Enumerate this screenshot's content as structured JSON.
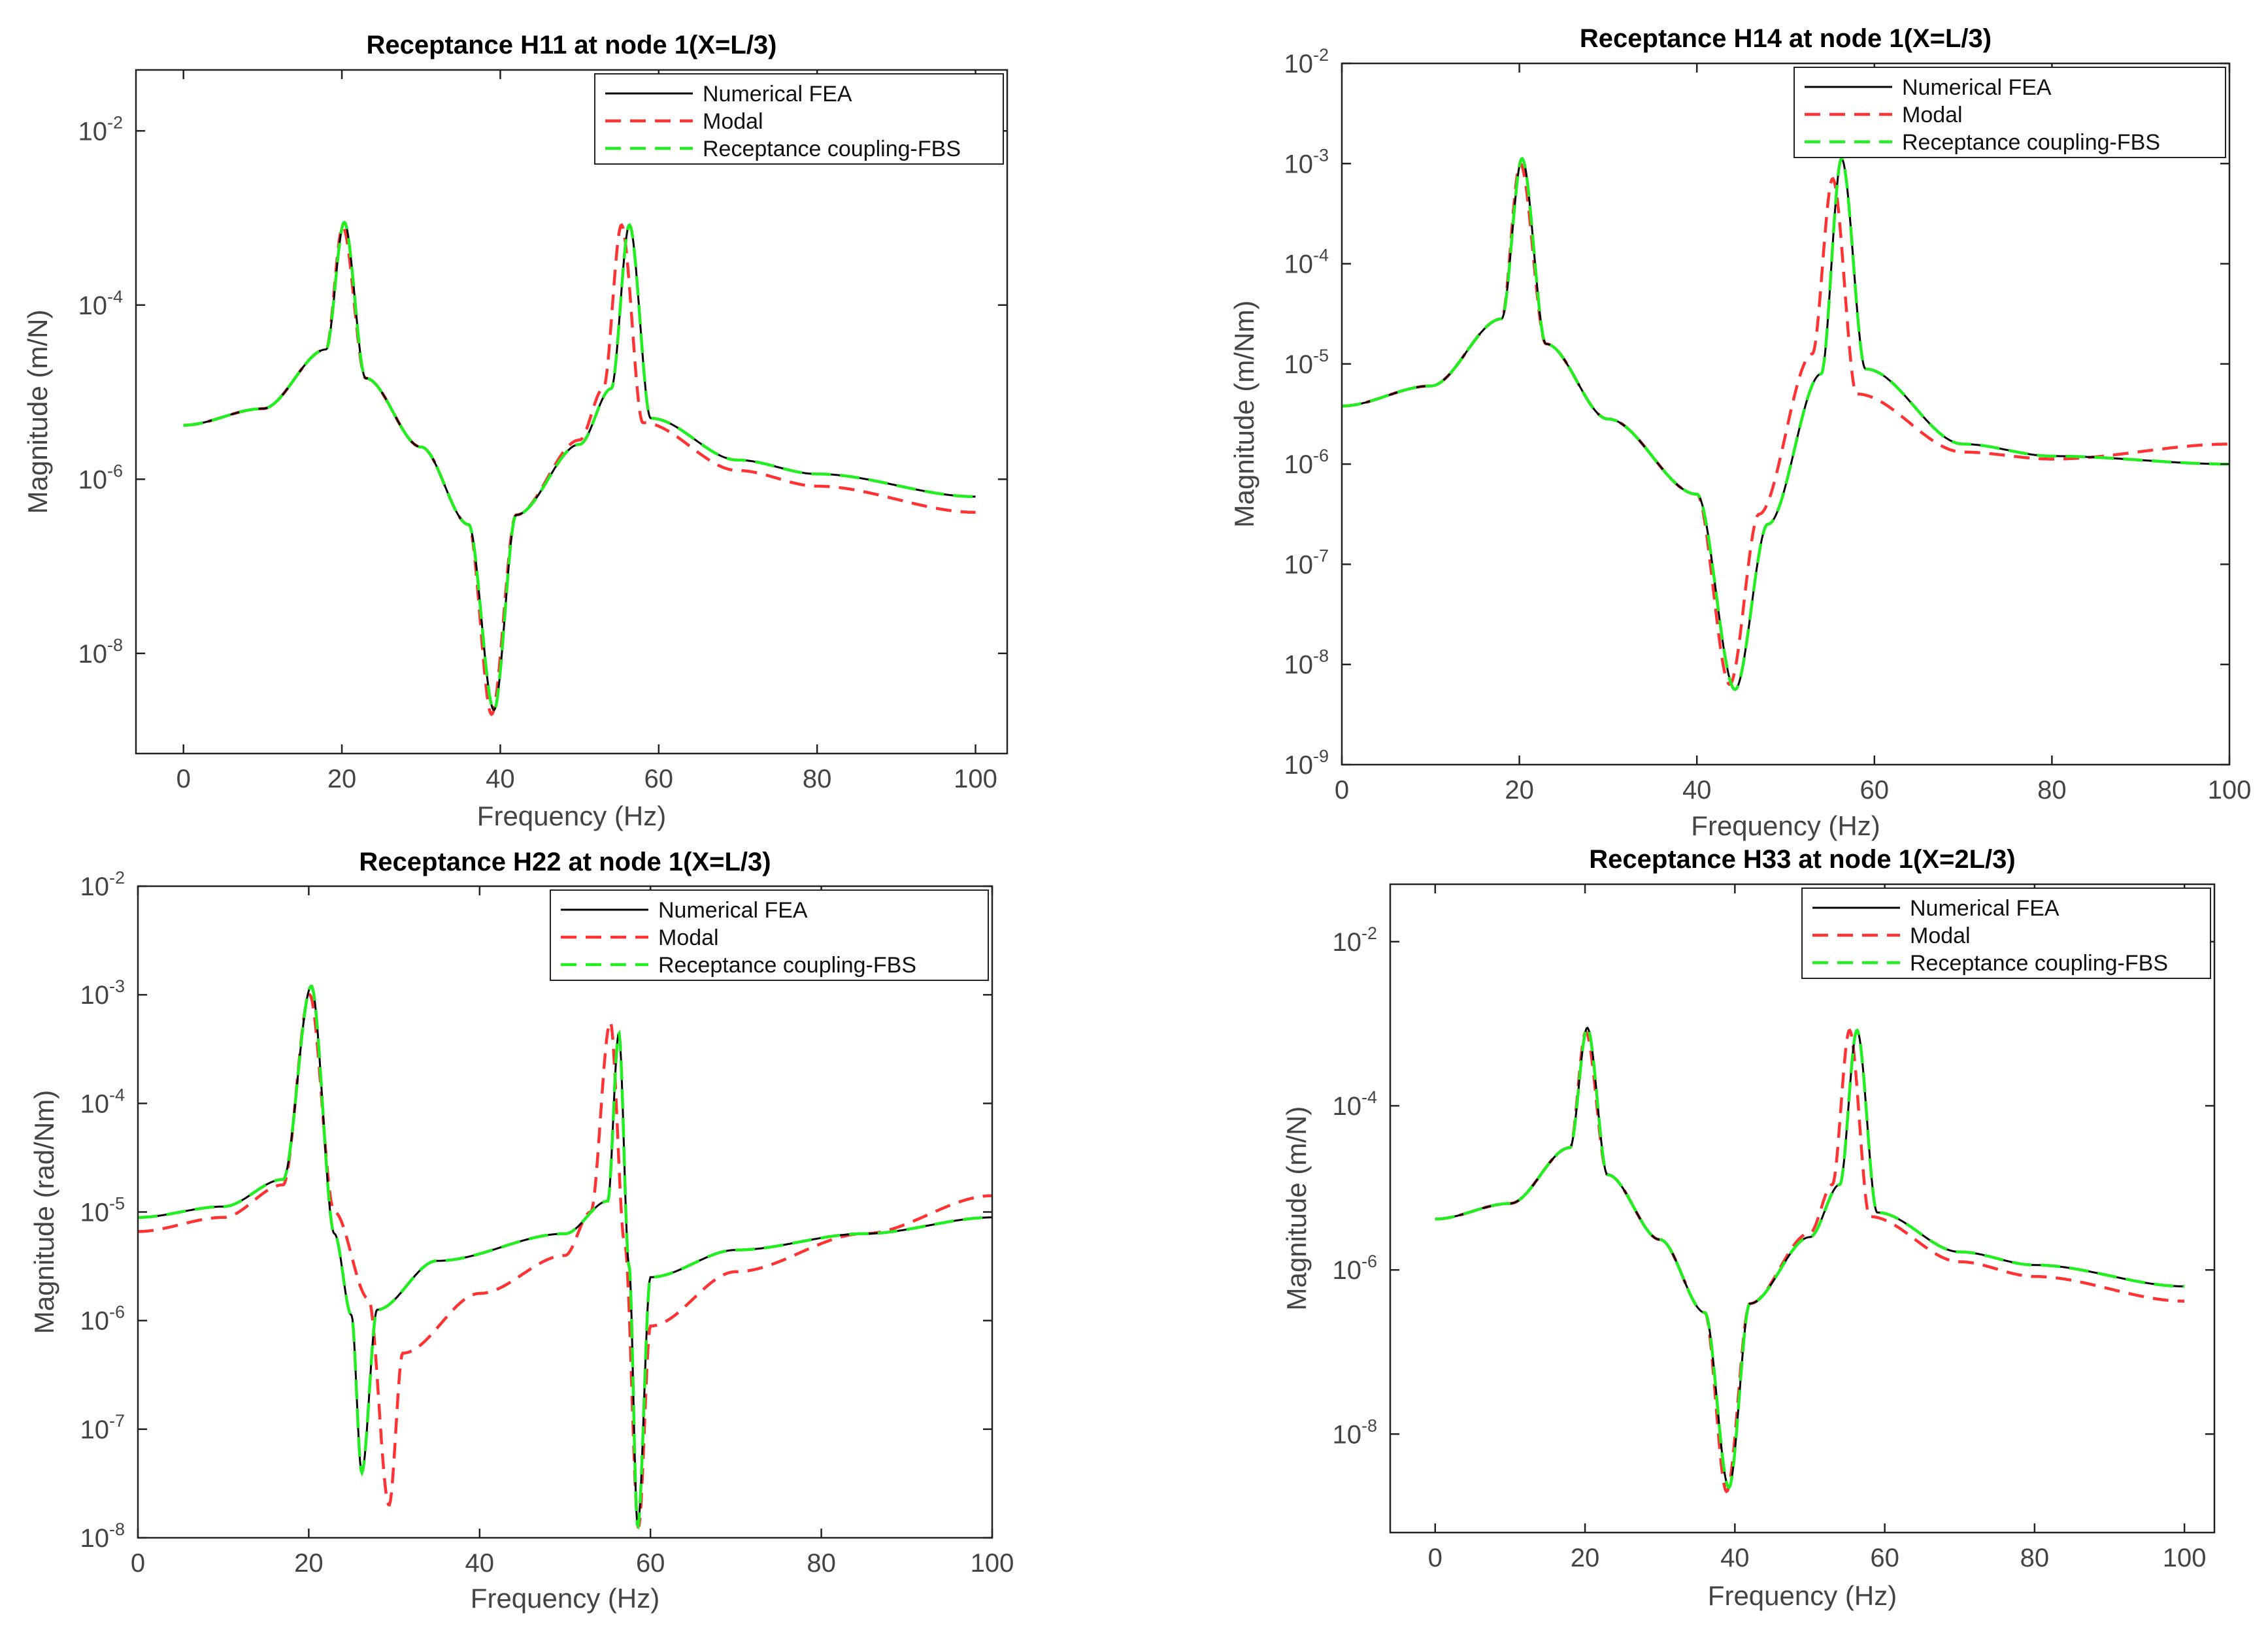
{
  "chart_data": [
    {
      "type": "line",
      "title": "Receptance H11 at node 1(X=L/3)",
      "xlabel": "Frequency (Hz)",
      "ylabel": "Magnitude (m/N)",
      "xlim": [
        -6,
        104
      ],
      "ylim_log10": [
        -9.15,
        -1.3
      ],
      "x_ticks": [
        0,
        20,
        40,
        60,
        80,
        100
      ],
      "y_tick_exponents": [
        -8,
        -6,
        -4,
        -2
      ],
      "grid": false,
      "legend_position": "top-right",
      "model": {
        "scale_log10": -5.38,
        "resonances_hz": [
          20.3,
          56.3
        ],
        "modal_resonances_hz": [
          20.1,
          55.3
        ],
        "antiresonance_hz": 39.2
      },
      "series": [
        {
          "name": "Numerical FEA",
          "style": "solid",
          "color": "#000000",
          "x": [
            0,
            10,
            18,
            20.3,
            23,
            30,
            36,
            39.2,
            42,
            50,
            54,
            56.3,
            59,
            70,
            80,
            100
          ],
          "log10_values": [
            -5.38,
            -5.19,
            -4.51,
            -3.05,
            -4.84,
            -5.63,
            -6.52,
            -8.65,
            -6.41,
            -5.6,
            -4.96,
            -3.08,
            -5.3,
            -5.78,
            -5.94,
            -6.2
          ]
        },
        {
          "name": "Modal",
          "style": "dashed",
          "color": "#ff3333",
          "x": [
            0,
            10,
            18,
            20.1,
            23,
            30,
            36,
            38.9,
            42,
            50,
            53,
            55.3,
            58,
            70,
            80,
            100
          ],
          "log10_values": [
            -5.38,
            -5.19,
            -4.51,
            -3.1,
            -4.84,
            -5.63,
            -6.52,
            -8.7,
            -6.41,
            -5.55,
            -4.96,
            -3.08,
            -5.35,
            -5.9,
            -6.08,
            -6.38
          ]
        },
        {
          "name": "Receptance coupling-FBS",
          "style": "dashed",
          "color": "#22ee22",
          "x": [
            0,
            10,
            18,
            20.3,
            23,
            30,
            36,
            39.2,
            42,
            50,
            54,
            56.3,
            59,
            70,
            80,
            100
          ],
          "log10_values": [
            -5.38,
            -5.19,
            -4.51,
            -3.05,
            -4.84,
            -5.63,
            -6.52,
            -8.65,
            -6.41,
            -5.6,
            -4.96,
            -3.08,
            -5.3,
            -5.78,
            -5.94,
            -6.2
          ]
        }
      ]
    },
    {
      "type": "line",
      "title": "Receptance H14 at node 1(X=L/3)",
      "xlabel": "Frequency (Hz)",
      "ylabel": "Magnitude (m/Nm)",
      "xlim": [
        0,
        100
      ],
      "ylim_log10": [
        -9,
        -2
      ],
      "x_ticks": [
        0,
        20,
        40,
        60,
        80,
        100
      ],
      "y_tick_exponents": [
        -9,
        -8,
        -7,
        -6,
        -5,
        -4,
        -3,
        -2
      ],
      "grid": false,
      "legend_position": "top-right",
      "model": {
        "scale_log10": -5.42,
        "resonances_hz": [
          20.3,
          56.3
        ],
        "modal_resonances_hz": [
          20.1,
          55.3
        ],
        "antiresonance_hz": 44.3
      },
      "series": [
        {
          "name": "Numerical FEA",
          "style": "solid",
          "color": "#000000",
          "x": [
            0,
            10,
            18,
            20.3,
            23,
            30,
            40,
            44.3,
            48,
            54,
            56.3,
            59,
            70,
            80,
            100
          ],
          "log10_values": [
            -5.42,
            -5.22,
            -4.55,
            -2.95,
            -4.8,
            -5.55,
            -6.3,
            -8.25,
            -6.6,
            -5.1,
            -2.95,
            -5.05,
            -5.8,
            -5.92,
            -6.0
          ]
        },
        {
          "name": "Modal",
          "style": "dashed",
          "color": "#ff3333",
          "x": [
            0,
            10,
            18,
            20.1,
            23,
            30,
            40,
            43.7,
            47,
            53,
            55.3,
            58,
            70,
            80,
            100
          ],
          "log10_values": [
            -5.42,
            -5.22,
            -4.55,
            -3.0,
            -4.8,
            -5.55,
            -6.3,
            -8.2,
            -6.5,
            -4.9,
            -3.15,
            -5.3,
            -5.88,
            -5.95,
            -5.8
          ]
        },
        {
          "name": "Receptance coupling-FBS",
          "style": "dashed",
          "color": "#22ee22",
          "x": [
            0,
            10,
            18,
            20.3,
            23,
            30,
            40,
            44.3,
            48,
            54,
            56.3,
            59,
            70,
            80,
            100
          ],
          "log10_values": [
            -5.42,
            -5.22,
            -4.55,
            -2.95,
            -4.8,
            -5.55,
            -6.3,
            -8.25,
            -6.6,
            -5.1,
            -2.95,
            -5.05,
            -5.8,
            -5.92,
            -6.0
          ]
        }
      ]
    },
    {
      "type": "line",
      "title": "Receptance H22 at node 1(X=L/3)",
      "xlabel": "Frequency (Hz)",
      "ylabel": "Magnitude (rad/Nm)",
      "xlim": [
        0,
        100
      ],
      "ylim_log10": [
        -8,
        -2
      ],
      "x_ticks": [
        0,
        20,
        40,
        60,
        80,
        100
      ],
      "y_tick_exponents": [
        -8,
        -7,
        -6,
        -5,
        -4,
        -3,
        -2
      ],
      "grid": false,
      "legend_position": "top-right",
      "model": {
        "scale_log10": -5.05,
        "resonances_hz": [
          20.3,
          56.3
        ],
        "modal_resonances_hz": [
          20.1,
          55.3
        ],
        "antiresonances_hz": [
          26.2,
          58.5
        ],
        "modal_antiresonances_hz": [
          29.4,
          58.6
        ]
      },
      "series": [
        {
          "name": "Numerical FEA",
          "style": "solid",
          "color": "#000000",
          "x": [
            0,
            10,
            17,
            20.3,
            23,
            25,
            26.2,
            28,
            35,
            50,
            55,
            56.3,
            57.5,
            58.5,
            60,
            70,
            85,
            100
          ],
          "log10_values": [
            -5.05,
            -4.95,
            -4.7,
            -2.92,
            -5.2,
            -5.95,
            -7.4,
            -5.9,
            -5.45,
            -5.2,
            -4.9,
            -3.35,
            -5.5,
            -7.9,
            -5.6,
            -5.35,
            -5.2,
            -5.05
          ]
        },
        {
          "name": "Modal",
          "style": "dashed",
          "color": "#ff3333",
          "x": [
            0,
            10,
            17,
            20.1,
            23,
            27,
            29.4,
            31,
            40,
            50,
            53,
            55.3,
            57,
            58.6,
            60,
            70,
            85,
            100
          ],
          "log10_values": [
            -5.18,
            -5.05,
            -4.75,
            -3.0,
            -5.0,
            -5.8,
            -7.7,
            -6.3,
            -5.75,
            -5.4,
            -5.0,
            -3.25,
            -5.3,
            -7.9,
            -6.05,
            -5.55,
            -5.2,
            -4.85
          ]
        },
        {
          "name": "Receptance coupling-FBS",
          "style": "dashed",
          "color": "#22ee22",
          "x": [
            0,
            10,
            17,
            20.3,
            23,
            25,
            26.2,
            28,
            35,
            50,
            55,
            56.3,
            57.5,
            58.5,
            60,
            70,
            85,
            100
          ],
          "log10_values": [
            -5.05,
            -4.95,
            -4.7,
            -2.92,
            -5.2,
            -5.95,
            -7.4,
            -5.9,
            -5.45,
            -5.2,
            -4.9,
            -3.35,
            -5.5,
            -7.9,
            -5.6,
            -5.35,
            -5.2,
            -5.05
          ]
        }
      ]
    },
    {
      "type": "line",
      "title": "Receptance H33 at node 1(X=2L/3)",
      "xlabel": "Frequency (Hz)",
      "ylabel": "Magnitude (m/N)",
      "xlim": [
        -6,
        104
      ],
      "ylim_log10": [
        -9.2,
        -1.3
      ],
      "x_ticks": [
        0,
        20,
        40,
        60,
        80,
        100
      ],
      "y_tick_exponents": [
        -8,
        -6,
        -4,
        -2
      ],
      "grid": false,
      "legend_position": "top-right",
      "model": {
        "scale_log10": -5.38,
        "resonances_hz": [
          20.3,
          56.3
        ],
        "modal_resonances_hz": [
          20.1,
          55.3
        ],
        "antiresonance_hz": 39.2
      },
      "series": [
        {
          "name": "Numerical FEA",
          "style": "solid",
          "color": "#000000",
          "x": [
            0,
            10,
            18,
            20.3,
            23,
            30,
            36,
            39.2,
            42,
            50,
            54,
            56.3,
            59,
            70,
            80,
            100
          ],
          "log10_values": [
            -5.38,
            -5.19,
            -4.51,
            -3.05,
            -4.84,
            -5.63,
            -6.52,
            -8.65,
            -6.41,
            -5.6,
            -4.96,
            -3.08,
            -5.3,
            -5.78,
            -5.94,
            -6.2
          ]
        },
        {
          "name": "Modal",
          "style": "dashed",
          "color": "#ff3333",
          "x": [
            0,
            10,
            18,
            20.1,
            23,
            30,
            36,
            38.9,
            42,
            50,
            53,
            55.3,
            58,
            70,
            80,
            100
          ],
          "log10_values": [
            -5.38,
            -5.19,
            -4.51,
            -3.1,
            -4.84,
            -5.63,
            -6.52,
            -8.7,
            -6.41,
            -5.55,
            -4.96,
            -3.08,
            -5.35,
            -5.9,
            -6.08,
            -6.38
          ]
        },
        {
          "name": "Receptance coupling-FBS",
          "style": "dashed",
          "color": "#22ee22",
          "x": [
            0,
            10,
            18,
            20.3,
            23,
            30,
            36,
            39.2,
            42,
            50,
            54,
            56.3,
            59,
            70,
            80,
            100
          ],
          "log10_values": [
            -5.38,
            -5.19,
            -4.51,
            -3.05,
            -4.84,
            -5.63,
            -6.52,
            -8.65,
            -6.41,
            -5.6,
            -4.96,
            -3.08,
            -5.3,
            -5.78,
            -5.94,
            -6.2
          ]
        }
      ]
    }
  ]
}
